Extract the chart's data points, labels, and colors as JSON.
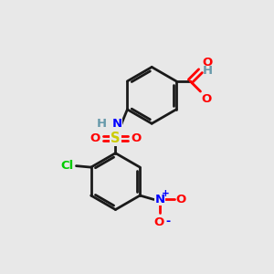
{
  "bg_color": "#e8e8e8",
  "bond_color": "#1a1a1a",
  "colors": {
    "O": "#ff0000",
    "N": "#0000ff",
    "S": "#cccc00",
    "Cl": "#00cc00",
    "H_gray": "#6699aa",
    "C": "#1a1a1a"
  }
}
